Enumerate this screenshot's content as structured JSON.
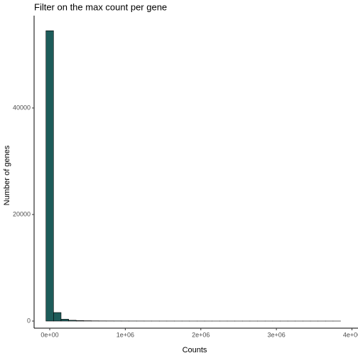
{
  "chart_data": {
    "type": "histogram",
    "title": "Filter on the max count per gene",
    "x_label": "Counts",
    "y_label": "Number of genes",
    "bins": [
      -50000,
      50000,
      150000,
      250000,
      350000,
      450000,
      550000,
      650000,
      750000,
      850000,
      950000,
      1050000,
      1150000,
      1250000,
      1350000,
      1450000,
      1550000,
      1650000,
      1750000,
      1850000,
      1950000,
      2050000,
      2150000,
      2250000,
      2350000,
      2450000,
      2550000,
      2650000,
      2750000,
      2850000,
      2950000,
      3050000,
      3150000,
      3250000,
      3350000,
      3450000,
      3550000,
      3650000,
      3750000,
      3850000
    ],
    "values": [
      54500,
      1600,
      350,
      150,
      90,
      60,
      40,
      30,
      25,
      20,
      15,
      12,
      10,
      8,
      7,
      6,
      5,
      4,
      4,
      3,
      3,
      2,
      2,
      2,
      2,
      1,
      1,
      1,
      1,
      1,
      1,
      1,
      1,
      1,
      1,
      1,
      1,
      1,
      1
    ],
    "color": "#1d5c5a",
    "xlim": [
      -207000,
      4080000
    ],
    "xticks": [
      {
        "value": 0,
        "label": "0e+00"
      },
      {
        "value": 1000000,
        "label": "1e+06"
      },
      {
        "value": 2000000,
        "label": "2e+06"
      },
      {
        "value": 3000000,
        "label": "3e+06"
      },
      {
        "value": 4000000,
        "label": "4e+06"
      }
    ],
    "ylim": [
      -1333,
      57333
    ],
    "yticks": [
      0,
      20000,
      40000
    ],
    "grid": false
  }
}
